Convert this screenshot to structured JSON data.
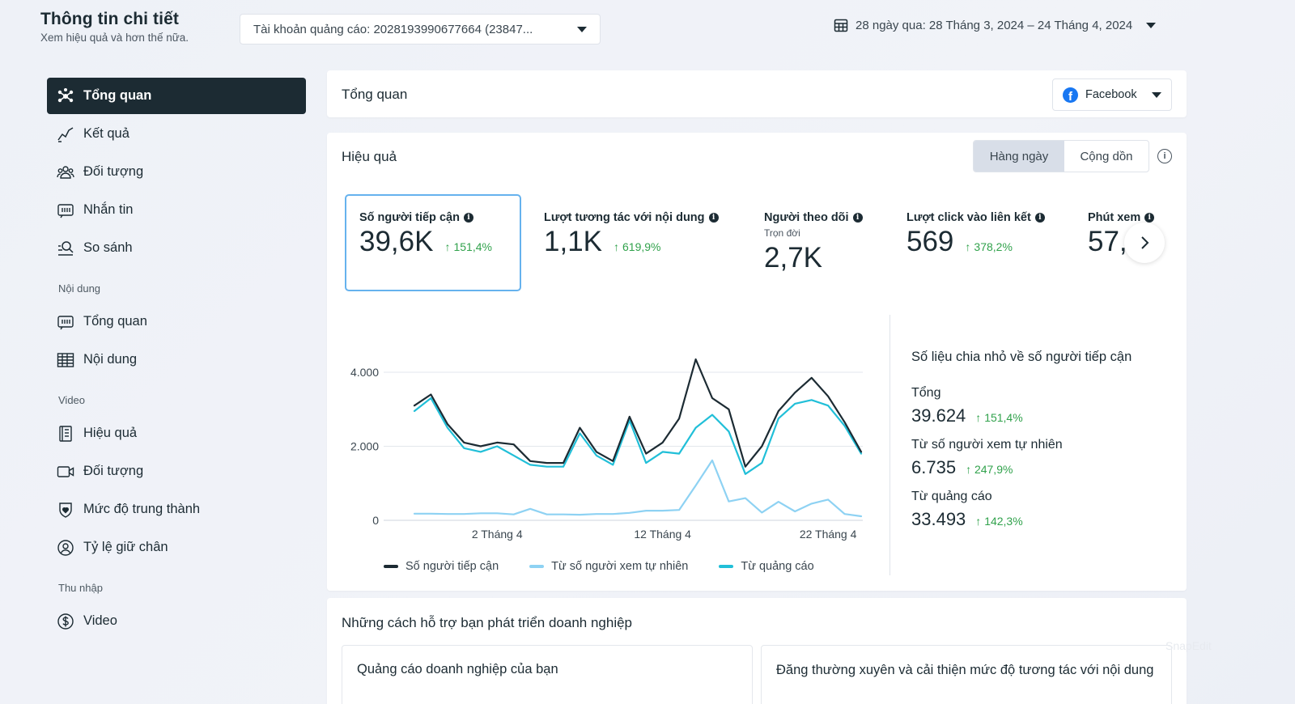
{
  "header": {
    "title": "Thông tin chi tiết",
    "subtitle": "Xem hiệu quả và hơn thế nữa.",
    "account_select": "Tài khoản quảng cáo: 2028193990677664 (23847...",
    "date_range": "28 ngày qua: 28 Tháng 3, 2024 – 24 Tháng 4, 2024"
  },
  "sidebar": {
    "items_top": [
      {
        "label": "Tổng quan",
        "icon": "overview-icon",
        "active": true
      },
      {
        "label": "Kết quả",
        "icon": "results-chart-icon"
      },
      {
        "label": "Đối tượng",
        "icon": "audience-icon"
      },
      {
        "label": "Nhắn tin",
        "icon": "messaging-icon"
      },
      {
        "label": "So sánh",
        "icon": "compare-search-icon"
      }
    ],
    "section_content": "Nội dung",
    "items_content": [
      {
        "label": "Tổng quan",
        "icon": "content-overview-icon"
      },
      {
        "label": "Nội dung",
        "icon": "table-icon"
      }
    ],
    "section_video": "Video",
    "items_video": [
      {
        "label": "Hiệu quả",
        "icon": "performance-icon"
      },
      {
        "label": "Đối tượng",
        "icon": "video-camera-icon"
      },
      {
        "label": "Mức độ trung thành",
        "icon": "loyalty-shield-icon"
      },
      {
        "label": "Tỷ lệ giữ chân",
        "icon": "retention-icon"
      }
    ],
    "section_income": "Thu nhập",
    "items_income": [
      {
        "label": "Video",
        "icon": "dollar-icon"
      }
    ]
  },
  "overview_panel": {
    "title": "Tổng quan",
    "platform": "Facebook"
  },
  "performance": {
    "title": "Hiệu quả",
    "toggle_daily": "Hàng ngày",
    "toggle_cumulative": "Cộng dồn",
    "metrics": [
      {
        "label": "Số người tiếp cận",
        "value": "39,6K",
        "change": "151,4%"
      },
      {
        "label": "Lượt tương tác với nội dung",
        "value": "1,1K",
        "change": "619,9%"
      },
      {
        "label": "Người theo dõi",
        "sub": "Trọn đời",
        "value": "2,7K"
      },
      {
        "label": "Lượt click vào liên kết",
        "value": "569",
        "change": "378,2%"
      },
      {
        "label": "Phút xem",
        "value": "57,"
      }
    ],
    "breakdown": {
      "title": "Số liệu chia nhỏ về số người tiếp cận",
      "rows": [
        {
          "label": "Tổng",
          "value": "39.624",
          "change": "151,4%"
        },
        {
          "label": "Từ số người xem tự nhiên",
          "value": "6.735",
          "change": "247,9%"
        },
        {
          "label": "Từ quảng cáo",
          "value": "33.493",
          "change": "142,3%"
        }
      ]
    }
  },
  "chart_data": {
    "type": "line",
    "y_ticks": [
      "4.000",
      "2.000",
      "0"
    ],
    "x_ticks": [
      "2 Tháng 4",
      "12 Tháng 4",
      "22 Tháng 4"
    ],
    "ylim": [
      0,
      4000
    ],
    "grid": true,
    "legend_position": "bottom",
    "x": [
      1,
      2,
      3,
      4,
      5,
      6,
      7,
      8,
      9,
      10,
      11,
      12,
      13,
      14,
      15,
      16,
      17,
      18,
      19,
      20,
      21,
      22,
      23,
      24,
      25,
      26,
      27,
      28
    ],
    "series": [
      {
        "name": "Số người tiếp cận",
        "color": "#1c2b33",
        "values": [
          3100,
          3400,
          2600,
          2100,
          2000,
          2100,
          2050,
          1600,
          1550,
          1550,
          2500,
          1850,
          1600,
          2800,
          1800,
          2100,
          2750,
          4350,
          3300,
          3000,
          1450,
          2000,
          2950,
          3450,
          3850,
          3350,
          2650,
          1850
        ]
      },
      {
        "name": "Từ số người xem tự nhiên",
        "color": "#8ed2f3",
        "values": [
          180,
          180,
          170,
          170,
          190,
          190,
          160,
          310,
          160,
          160,
          150,
          170,
          170,
          200,
          260,
          260,
          280,
          940,
          1620,
          510,
          600,
          210,
          500,
          240,
          450,
          560,
          170,
          110
        ]
      },
      {
        "name": "Từ quảng cáo",
        "color": "#21bfd8",
        "values": [
          2950,
          3300,
          2500,
          1950,
          1850,
          2000,
          1750,
          1500,
          1450,
          1450,
          2350,
          1750,
          1500,
          2700,
          1550,
          1850,
          1800,
          2500,
          2850,
          2400,
          1250,
          1550,
          2750,
          3150,
          3250,
          3100,
          2550,
          1800
        ]
      }
    ]
  },
  "growth": {
    "title": "Những cách hỗ trợ bạn phát triển doanh nghiệp",
    "card1": "Quảng cáo doanh nghiệp của bạn",
    "card2": "Đăng thường xuyên và cải thiện mức độ tương tác với nội dung"
  },
  "watermark": "SnapEdit"
}
